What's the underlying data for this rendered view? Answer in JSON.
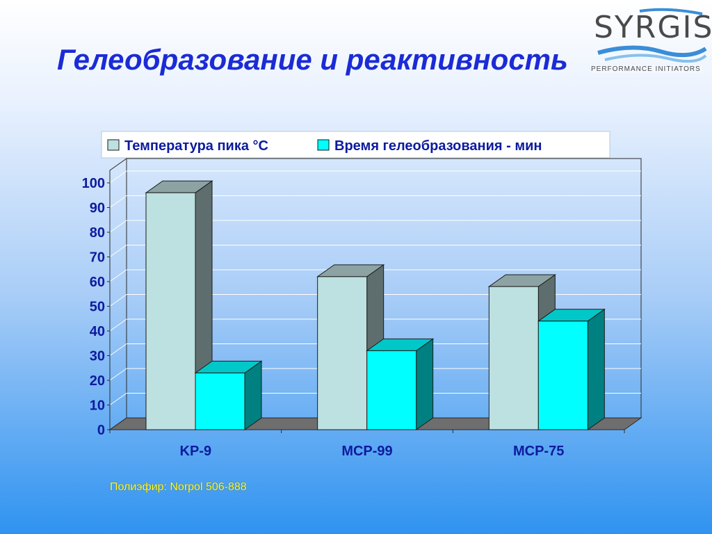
{
  "slide": {
    "title": "Гелеобразование и реактивность",
    "footnote": "Полиэфир: Norpol 506-888"
  },
  "logo": {
    "name": "SYRGIS",
    "tagline": "PERFORMANCE INITIATORS"
  },
  "chart_data": {
    "type": "bar",
    "three_d": true,
    "categories": [
      "KP-9",
      "MCP-99",
      "MCP-75"
    ],
    "series": [
      {
        "name": "Температура пика °C",
        "values": [
          96,
          62,
          58
        ],
        "color": "#bde0e0",
        "side_color": "#5e6e6e",
        "top_color": "#8da3a3"
      },
      {
        "name": "Время гелеобразования - мин",
        "values": [
          23,
          32,
          44
        ],
        "color": "#00ffff",
        "side_color": "#008080",
        "top_color": "#00c8c8"
      }
    ],
    "ylim": [
      0,
      100
    ],
    "yticks": [
      0,
      10,
      20,
      30,
      40,
      50,
      60,
      70,
      80,
      90,
      100
    ],
    "grid": true,
    "legend_position": "top",
    "floor_color": "#6e6e6e"
  }
}
